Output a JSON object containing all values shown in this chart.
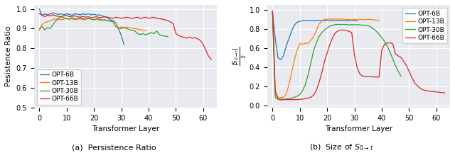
{
  "colors": {
    "OPT-6B": "#1f77b4",
    "OPT-13B": "#ff7f0e",
    "OPT-30B": "#2ca02c",
    "OPT-66B": "#d62728"
  },
  "bg_color": "#e8eaf0",
  "fig_bg": "#ffffff",
  "left_ylabel": "Pesistence Ratio",
  "xlabel": "Transformer Layer",
  "caption_left": "(a)  Persistence Ratio",
  "caption_right": "(b)  Size of $S_{0\\rightarrow t}$",
  "left_ylim": [
    0.5,
    1.02
  ],
  "right_ylim": [
    -0.02,
    1.05
  ],
  "left_yticks": [
    0.5,
    0.6,
    0.7,
    0.8,
    0.9,
    1.0
  ],
  "right_yticks": [
    0.0,
    0.2,
    0.4,
    0.6,
    0.8,
    1.0
  ],
  "left_xlim": [
    -2,
    65
  ],
  "right_xlim": [
    -2,
    65
  ],
  "left_xticks": [
    0,
    10,
    20,
    30,
    40,
    50,
    60
  ],
  "right_xticks": [
    0,
    10,
    20,
    30,
    40,
    50,
    60
  ]
}
